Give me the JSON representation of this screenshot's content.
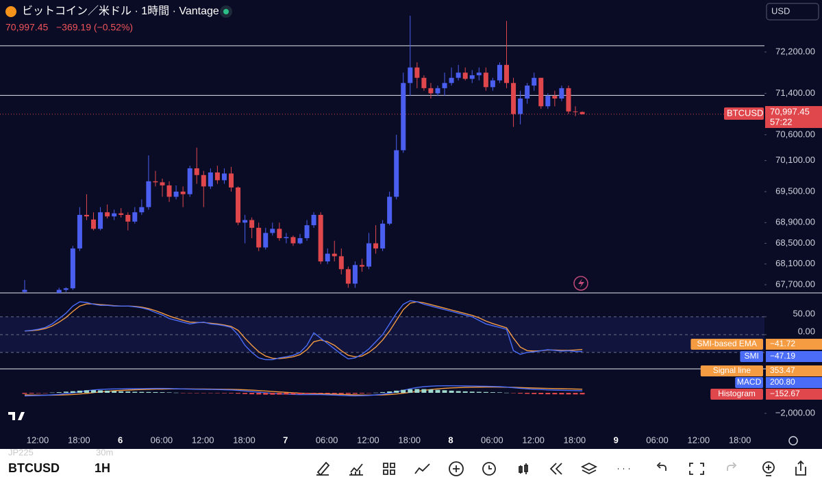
{
  "header": {
    "title": "ビットコイン／米ドル · 1時間 · Vantage",
    "last_price": "70,997.45",
    "change": "−369.19 (−0.52%)",
    "currency": "USD"
  },
  "last_label": {
    "symbol": "BTCUSD",
    "price": "70,997.45",
    "countdown": "57:22"
  },
  "time_axis": [
    "12:00",
    "18:00",
    "6",
    "06:00",
    "12:00",
    "18:00",
    "7",
    "06:00",
    "12:00",
    "18:00",
    "8",
    "06:00",
    "12:00",
    "18:00",
    "9",
    "06:00",
    "12:00",
    "18:00"
  ],
  "toolbar": {
    "symbol": "BTCUSD",
    "interval": "1H",
    "ghost_symbol": "JP225",
    "ghost_interval": "30m"
  },
  "chart_data": [
    {
      "type": "candlestick",
      "name": "BTCUSD",
      "up_color": "#4a5ff0",
      "down_color": "#e0474c",
      "open": [
        67560,
        67450,
        67420,
        67440,
        67400,
        67470,
        67600,
        67630,
        68400,
        69050,
        68960,
        68780,
        69100,
        69020,
        69080,
        69050,
        68920,
        69100,
        69200,
        69700,
        69680,
        69620,
        69400,
        69500,
        69450,
        69950,
        69820,
        69600,
        69870,
        69720,
        69850,
        69580,
        68900,
        68950,
        68800,
        68420,
        68700,
        68780,
        68600,
        68620,
        68500,
        68600,
        68850,
        69050,
        68150,
        68300,
        68250,
        68000,
        67720,
        68080,
        68050,
        68500,
        68400,
        68880,
        69400,
        70300,
        71600,
        71900,
        71700,
        71500,
        71400,
        71500,
        71600,
        71700,
        71800,
        71680,
        71750,
        71800,
        71520,
        71650,
        71950,
        71600,
        71000,
        71300,
        71550,
        71700,
        71150,
        71350,
        71300,
        71500,
        71050,
        71040
      ],
      "high": [
        67790,
        67480,
        67470,
        67470,
        67500,
        67640,
        67650,
        68450,
        69200,
        69450,
        69100,
        69200,
        69250,
        69150,
        69180,
        69100,
        69200,
        69350,
        70200,
        69900,
        69750,
        69700,
        69620,
        69600,
        70000,
        70350,
        69900,
        69950,
        70000,
        69950,
        69980,
        69600,
        69050,
        69000,
        68900,
        68800,
        68900,
        68900,
        68700,
        68650,
        68680,
        68950,
        69100,
        69100,
        68400,
        68550,
        68400,
        68050,
        68150,
        68200,
        68700,
        68850,
        68950,
        69500,
        70600,
        71800,
        72900,
        72000,
        71750,
        71600,
        71550,
        71800,
        71900,
        71950,
        71900,
        71850,
        71900,
        71900,
        71700,
        72000,
        72800,
        71700,
        71450,
        71600,
        71800,
        71700,
        71400,
        71450,
        71550,
        71550,
        71150,
        71050
      ],
      "low": [
        67540,
        67400,
        67380,
        67380,
        67380,
        67450,
        67560,
        67600,
        68350,
        68950,
        68750,
        68750,
        68980,
        68950,
        69000,
        68750,
        68880,
        69050,
        69150,
        69600,
        69400,
        69300,
        69350,
        69200,
        69400,
        69650,
        69200,
        69550,
        69650,
        69650,
        69500,
        68850,
        68500,
        68600,
        68350,
        68380,
        68650,
        68550,
        68500,
        68450,
        68480,
        68550,
        68800,
        68100,
        68100,
        68150,
        67900,
        67640,
        67640,
        67950,
        68000,
        68300,
        68350,
        68850,
        69350,
        70250,
        71350,
        71500,
        71450,
        71300,
        71350,
        71350,
        71550,
        71650,
        71650,
        71600,
        71650,
        71450,
        71450,
        71600,
        71500,
        70750,
        70800,
        71200,
        71450,
        71100,
        71100,
        71150,
        71250,
        71000,
        70960,
        70990
      ],
      "close": [
        67600,
        67420,
        67440,
        67400,
        67470,
        67600,
        67630,
        68400,
        69050,
        69020,
        68780,
        69100,
        69020,
        69080,
        69050,
        68920,
        69100,
        69200,
        69700,
        69680,
        69620,
        69400,
        69500,
        69450,
        69950,
        69820,
        69600,
        69870,
        69720,
        69850,
        69580,
        68900,
        68950,
        68800,
        68420,
        68700,
        68780,
        68600,
        68620,
        68500,
        68600,
        68850,
        69050,
        68150,
        68300,
        68250,
        68000,
        67720,
        68080,
        68050,
        68500,
        68400,
        68880,
        69400,
        70300,
        71600,
        71900,
        71700,
        71500,
        71400,
        71500,
        71600,
        71700,
        71800,
        71680,
        71750,
        71800,
        71520,
        71650,
        71950,
        71600,
        71000,
        71300,
        71550,
        71700,
        71150,
        71350,
        71300,
        71500,
        71050,
        71040,
        70997.45
      ],
      "hlines": [
        72320,
        71360
      ],
      "ylim": [
        67541,
        73205
      ],
      "yticks": [
        {
          "value": 72200,
          "label": "72,200.00"
        },
        {
          "value": 71400,
          "label": "71,400.00"
        },
        {
          "value": 70600,
          "label": "70,600.00"
        },
        {
          "value": 70100,
          "label": "70,100.00"
        },
        {
          "value": 69500,
          "label": "69,500.00"
        },
        {
          "value": 68900,
          "label": "68,900.00"
        },
        {
          "value": 68500,
          "label": "68,500.00"
        },
        {
          "value": 68100,
          "label": "68,100.00"
        },
        {
          "value": 67700,
          "label": "67,700.00"
        }
      ]
    },
    {
      "type": "line",
      "levels": [
        50,
        0,
        -50
      ],
      "ylim": [
        -94,
        113
      ],
      "yticks": [
        {
          "value": 50,
          "label": "50.00"
        },
        {
          "value": 0,
          "label": "0.00"
        }
      ],
      "series": [
        {
          "name": "SMI-based EMA",
          "color": "#f59b42",
          "last_label": "−41.72",
          "values": [
            10,
            11,
            13,
            17,
            24,
            35,
            48,
            65,
            80,
            86,
            86,
            84,
            83,
            81,
            80,
            80,
            79,
            77,
            73,
            67,
            60,
            52,
            46,
            40,
            35,
            34,
            34,
            32,
            30,
            27,
            23,
            12,
            -10,
            -30,
            -48,
            -60,
            -66,
            -67,
            -65,
            -62,
            -56,
            -42,
            -20,
            -15,
            -20,
            -30,
            -45,
            -58,
            -62,
            -60,
            -50,
            -35,
            -15,
            10,
            40,
            70,
            88,
            92,
            89,
            84,
            79,
            74,
            69,
            64,
            59,
            54,
            47,
            38,
            31,
            25,
            19,
            -10,
            -35,
            -45,
            -46,
            -45,
            -43,
            -43,
            -44,
            -44,
            -43,
            -41.72
          ]
        },
        {
          "name": "SMI",
          "color": "#4a6cf7",
          "last_label": "−47.19",
          "values": [
            10,
            12,
            15,
            20,
            30,
            45,
            60,
            80,
            92,
            90,
            85,
            82,
            82,
            80,
            80,
            80,
            78,
            75,
            70,
            62,
            55,
            45,
            40,
            35,
            30,
            33,
            35,
            30,
            28,
            25,
            20,
            0,
            -30,
            -50,
            -65,
            -70,
            -70,
            -65,
            -62,
            -58,
            -50,
            -30,
            5,
            -10,
            -25,
            -40,
            -55,
            -68,
            -65,
            -55,
            -40,
            -20,
            0,
            30,
            60,
            85,
            95,
            92,
            85,
            80,
            75,
            70,
            65,
            60,
            55,
            50,
            40,
            30,
            25,
            20,
            15,
            -45,
            -55,
            -50,
            -48,
            -45,
            -42,
            -44,
            -46,
            -45,
            -47,
            -47.19
          ]
        }
      ]
    },
    {
      "type": "macd",
      "ylim": [
        -3067,
        2267
      ],
      "yticks": [
        {
          "value": -2000,
          "label": "−2,000.00"
        }
      ],
      "series": [
        {
          "name": "Signal line",
          "color": "#f59b42",
          "last_label": "353.47",
          "values": [
            -200,
            -210,
            -220,
            -225,
            -225,
            -215,
            -195,
            -160,
            -110,
            -50,
            20,
            90,
            150,
            200,
            240,
            270,
            300,
            320,
            340,
            360,
            370,
            380,
            385,
            385,
            380,
            375,
            370,
            360,
            355,
            345,
            335,
            320,
            295,
            260,
            220,
            180,
            130,
            85,
            45,
            5,
            -30,
            -60,
            -80,
            -100,
            -115,
            -135,
            -155,
            -180,
            -200,
            -215,
            -220,
            -215,
            -200,
            -165,
            -110,
            -40,
            50,
            150,
            240,
            320,
            390,
            440,
            480,
            510,
            530,
            545,
            555,
            560,
            560,
            555,
            550,
            535,
            515,
            490,
            470,
            450,
            430,
            415,
            400,
            385,
            370,
            353.47
          ]
        },
        {
          "name": "MACD",
          "color": "#4a6cf7",
          "last_label": "200.80",
          "values": [
            -300,
            -280,
            -260,
            -230,
            -200,
            -150,
            -80,
            0,
            100,
            200,
            280,
            330,
            360,
            380,
            390,
            400,
            400,
            410,
            420,
            430,
            430,
            420,
            400,
            380,
            360,
            350,
            340,
            330,
            320,
            300,
            280,
            240,
            180,
            120,
            60,
            0,
            -50,
            -90,
            -120,
            -150,
            -170,
            -170,
            -160,
            -170,
            -190,
            -220,
            -250,
            -280,
            -290,
            -280,
            -250,
            -200,
            -130,
            -30,
            100,
            250,
            400,
            520,
            600,
            650,
            680,
            690,
            690,
            680,
            670,
            660,
            650,
            640,
            620,
            600,
            560,
            500,
            440,
            390,
            350,
            320,
            290,
            270,
            250,
            230,
            215,
            200.8
          ]
        },
        {
          "name": "Histogram",
          "color": "#e0474c",
          "up_color": "#9fd8cc",
          "down_color": "#e0474c",
          "last_label": "−152.67",
          "values": [
            -100,
            -70,
            -40,
            -5,
            25,
            65,
            115,
            160,
            210,
            250,
            260,
            240,
            210,
            180,
            150,
            130,
            100,
            90,
            80,
            70,
            60,
            40,
            15,
            -5,
            -20,
            -25,
            -30,
            -30,
            -35,
            -45,
            -55,
            -80,
            -115,
            -140,
            -160,
            -180,
            -180,
            -175,
            -165,
            -155,
            -140,
            -110,
            -80,
            -70,
            -75,
            -85,
            -95,
            -100,
            -90,
            -65,
            -30,
            15,
            70,
            135,
            210,
            290,
            350,
            370,
            360,
            330,
            290,
            250,
            210,
            170,
            140,
            115,
            95,
            80,
            60,
            45,
            10,
            -35,
            -75,
            -100,
            -120,
            -130,
            -140,
            -145,
            -150,
            -155,
            -155,
            -152.67
          ]
        }
      ]
    }
  ]
}
